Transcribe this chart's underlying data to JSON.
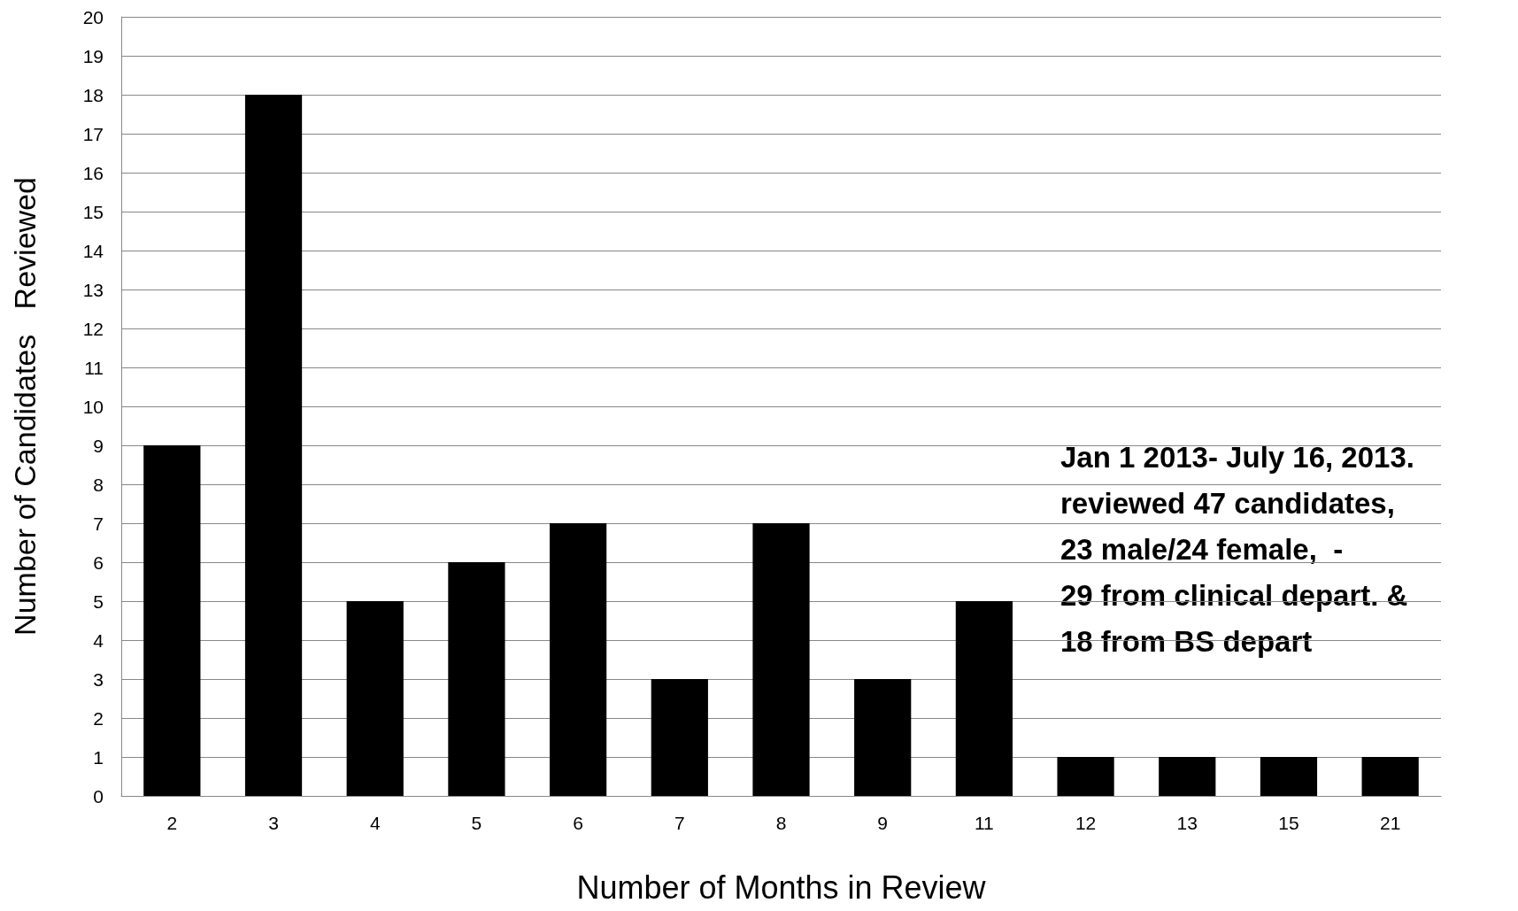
{
  "chart_data": {
    "type": "bar",
    "xlabel": "Number of Months in Review",
    "ylabel": "Number of Candidates   Reviewed",
    "categories": [
      "2",
      "3",
      "4",
      "5",
      "6",
      "7",
      "8",
      "9",
      "11",
      "12",
      "13",
      "15",
      "21"
    ],
    "values": [
      9,
      18,
      5,
      6,
      7,
      3,
      7,
      3,
      5,
      1,
      1,
      1,
      1
    ],
    "color": "#000000",
    "ylim": [
      0,
      20
    ],
    "yticks": [
      0,
      1,
      2,
      3,
      4,
      5,
      6,
      7,
      8,
      9,
      10,
      11,
      12,
      13,
      14,
      15,
      16,
      17,
      18,
      19,
      20
    ],
    "grid": "y",
    "annotations": [
      "Jan 1 2013- July 16, 2013.\nreviewed 47 candidates,\n23 male/24 female,  -\n29 from clinical depart. &\n18 from BS depart"
    ]
  }
}
